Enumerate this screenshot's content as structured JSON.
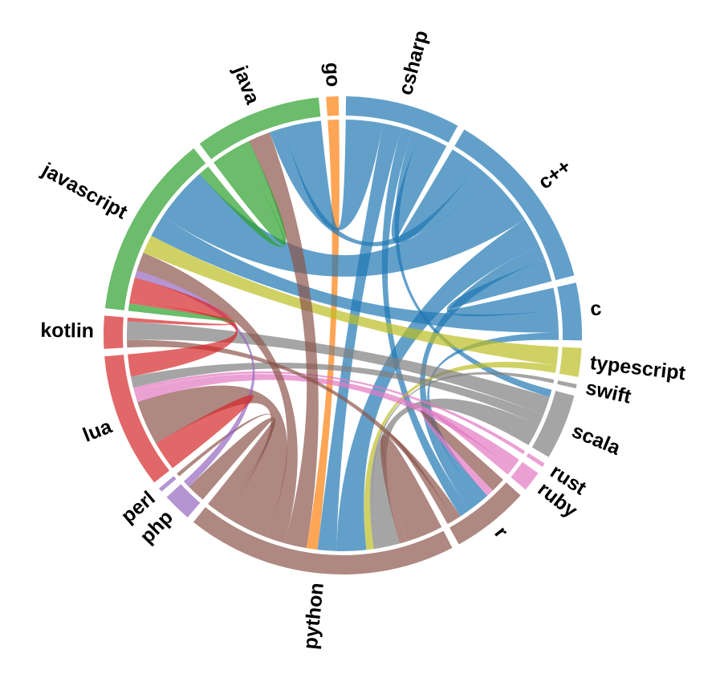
{
  "chart_data": {
    "type": "chord",
    "groups": [
      {
        "name": "go",
        "color": "#ff7f0e"
      },
      {
        "name": "csharp",
        "color": "#1f77b4"
      },
      {
        "name": "c++",
        "color": "#1f77b4"
      },
      {
        "name": "c",
        "color": "#1f77b4"
      },
      {
        "name": "typescript",
        "color": "#bcbd22"
      },
      {
        "name": "swift",
        "color": "#7f7f7f"
      },
      {
        "name": "scala",
        "color": "#7f7f7f"
      },
      {
        "name": "rust",
        "color": "#e377c2"
      },
      {
        "name": "ruby",
        "color": "#e377c2"
      },
      {
        "name": "r",
        "color": "#8c564b"
      },
      {
        "name": "python",
        "color": "#8c564b"
      },
      {
        "name": "php",
        "color": "#9467bd"
      },
      {
        "name": "perl",
        "color": "#9467bd"
      },
      {
        "name": "lua",
        "color": "#d62728"
      },
      {
        "name": "kotlin",
        "color": "#d62728"
      },
      {
        "name": "javascript",
        "color": "#2ca02c"
      },
      {
        "name": "java",
        "color": "#2ca02c"
      }
    ],
    "chords": [
      {
        "source": 0,
        "target": 10,
        "value": 3
      },
      {
        "source": 1,
        "target": 16,
        "value": 10
      },
      {
        "source": 1,
        "target": 2,
        "value": 8
      },
      {
        "source": 1,
        "target": 10,
        "value": 5
      },
      {
        "source": 1,
        "target": 9,
        "value": 3
      },
      {
        "source": 1,
        "target": 6,
        "value": 2
      },
      {
        "source": 2,
        "target": 15,
        "value": 15
      },
      {
        "source": 2,
        "target": 3,
        "value": 6
      },
      {
        "source": 2,
        "target": 10,
        "value": 8
      },
      {
        "source": 2,
        "target": 9,
        "value": 4
      },
      {
        "source": 2,
        "target": 16,
        "value": 4
      },
      {
        "source": 3,
        "target": 15,
        "value": 6
      },
      {
        "source": 3,
        "target": 9,
        "value": 2
      },
      {
        "source": 4,
        "target": 15,
        "value": 5
      },
      {
        "source": 4,
        "target": 10,
        "value": 2
      },
      {
        "source": 5,
        "target": 10,
        "value": 1
      },
      {
        "source": 6,
        "target": 14,
        "value": 5
      },
      {
        "source": 6,
        "target": 10,
        "value": 6
      },
      {
        "source": 6,
        "target": 13,
        "value": 3
      },
      {
        "source": 7,
        "target": 13,
        "value": 1
      },
      {
        "source": 8,
        "target": 13,
        "value": 3
      },
      {
        "source": 8,
        "target": 9,
        "value": 2
      },
      {
        "source": 9,
        "target": 14,
        "value": 2
      },
      {
        "source": 9,
        "target": 10,
        "value": 2
      },
      {
        "source": 9,
        "target": 9,
        "value": 4
      },
      {
        "source": 10,
        "target": 10,
        "value": 10
      },
      {
        "source": 10,
        "target": 11,
        "value": 5
      },
      {
        "source": 10,
        "target": 13,
        "value": 12
      },
      {
        "source": 10,
        "target": 16,
        "value": 6
      },
      {
        "source": 10,
        "target": 15,
        "value": 5
      },
      {
        "source": 10,
        "target": 12,
        "value": 1
      },
      {
        "source": 11,
        "target": 15,
        "value": 2
      },
      {
        "source": 13,
        "target": 13,
        "value": 8
      },
      {
        "source": 13,
        "target": 15,
        "value": 6
      },
      {
        "source": 14,
        "target": 15,
        "value": 1
      },
      {
        "source": 15,
        "target": 16,
        "value": 3
      },
      {
        "source": 15,
        "target": 15,
        "value": 2
      },
      {
        "source": 16,
        "target": 16,
        "value": 8
      }
    ]
  }
}
